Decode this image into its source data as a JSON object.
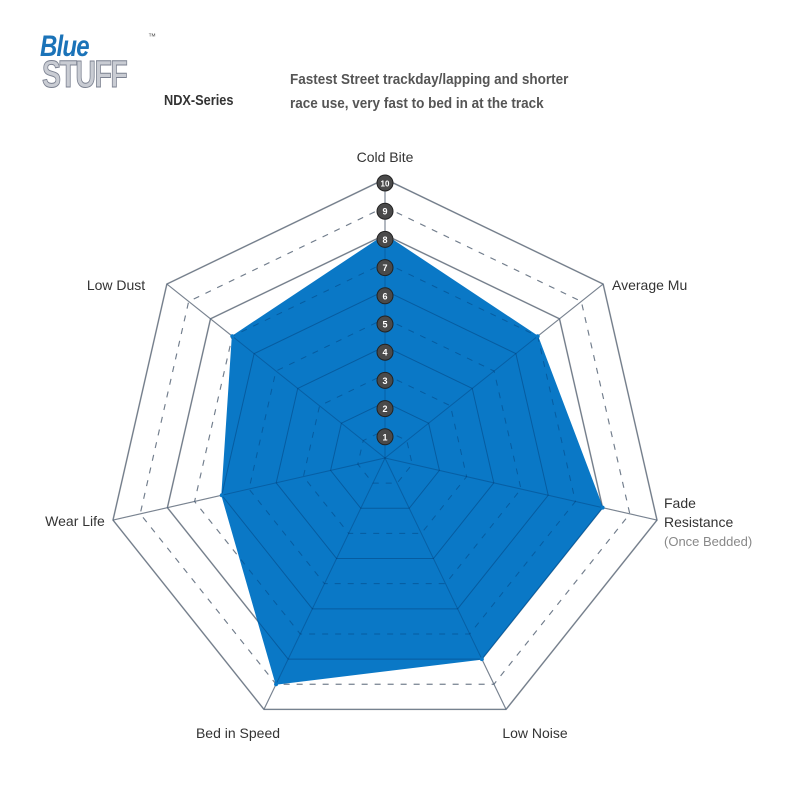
{
  "logo": {
    "line1": "Blue",
    "line2": "STUFF",
    "tm": "™"
  },
  "series_label": "NDX-Series",
  "description": [
    "Fastest Street trackday/lapping and shorter",
    "race use, very fast to bed in at the track"
  ],
  "chart_data": {
    "type": "radar",
    "axes": [
      "Cold Bite",
      "Average Mu",
      "Fade Resistance",
      "Low Noise",
      "Bed in Speed",
      "Wear Life",
      "Low Dust"
    ],
    "axis_sublabels": {
      "Fade Resistance": "(Once Bedded)"
    },
    "values": [
      8,
      7,
      8,
      8,
      9,
      6,
      7
    ],
    "range": [
      0,
      10
    ],
    "scale_ticks": [
      1,
      2,
      3,
      4,
      5,
      6,
      7,
      8,
      9,
      10
    ],
    "fill_color": "#0a78c6",
    "grid_color": "#aaaaaa",
    "tick_badge_color": "#4a4a4a"
  }
}
